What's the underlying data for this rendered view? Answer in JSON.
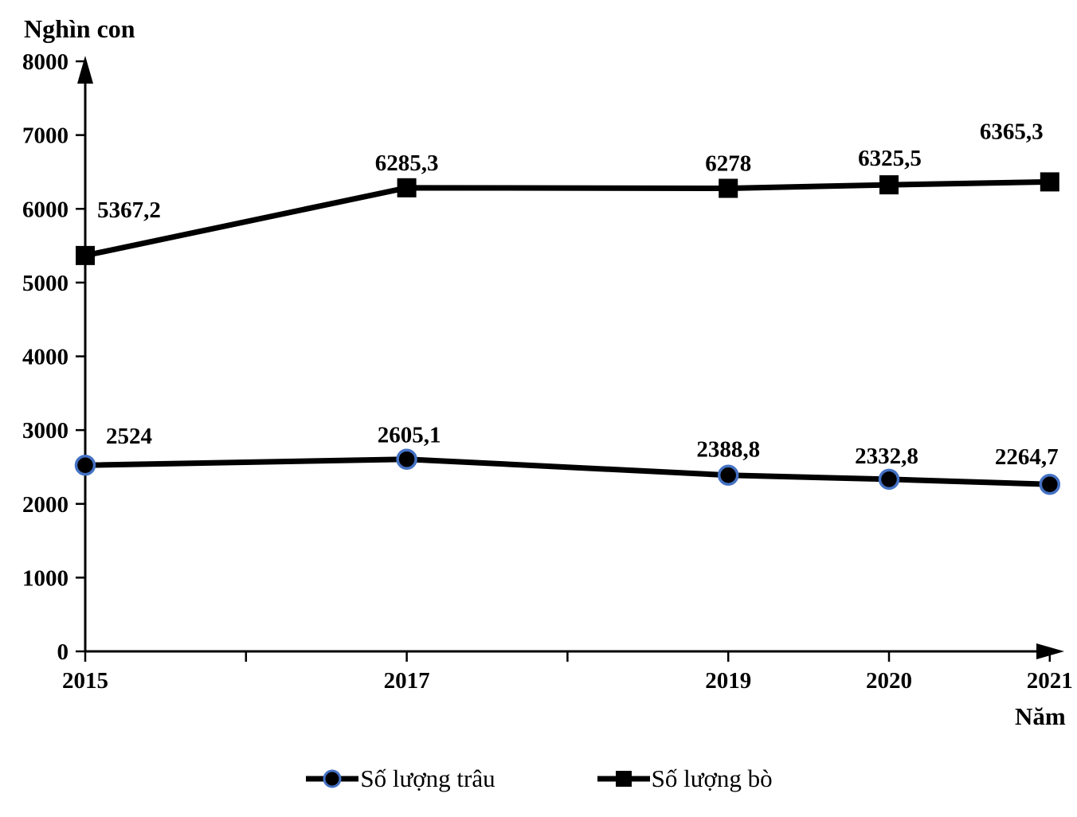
{
  "chart_data": {
    "type": "line",
    "title": "",
    "ylabel": "Nghìn con",
    "xlabel": "Năm",
    "x": [
      2015,
      2017,
      2019,
      2020,
      2021
    ],
    "x_tick_labels": [
      "2015",
      "2017",
      "2019",
      "2020",
      "2021"
    ],
    "xlim": [
      2015,
      2021
    ],
    "ylim": [
      0,
      8000
    ],
    "y_ticks": [
      0,
      1000,
      2000,
      3000,
      4000,
      5000,
      6000,
      7000,
      8000
    ],
    "y_tick_labels": [
      "0",
      "1000",
      "2000",
      "3000",
      "4000",
      "5000",
      "6000",
      "7000",
      "8000"
    ],
    "grid": false,
    "legend_position": "bottom",
    "series": [
      {
        "name": "Số lượng trâu",
        "marker": "circle",
        "values": [
          2524,
          2605.1,
          2388.8,
          2332.8,
          2264.7
        ],
        "labels": [
          "2524",
          "2605,1",
          "2388,8",
          "2332,8",
          "2264,7"
        ]
      },
      {
        "name": "Số lượng bò",
        "marker": "square",
        "values": [
          5367.2,
          6285.3,
          6278,
          6325.5,
          6365.3
        ],
        "labels": [
          "5367,2",
          "6285,3",
          "6278",
          "6325,5",
          "6365,3"
        ]
      }
    ]
  },
  "colors": {
    "line": "#000000",
    "axis": "#000000",
    "text": "#000000",
    "circle_marker_fill": "#000000",
    "circle_marker_ring": "#4472C4",
    "square_marker_fill": "#000000",
    "background": "#ffffff"
  }
}
